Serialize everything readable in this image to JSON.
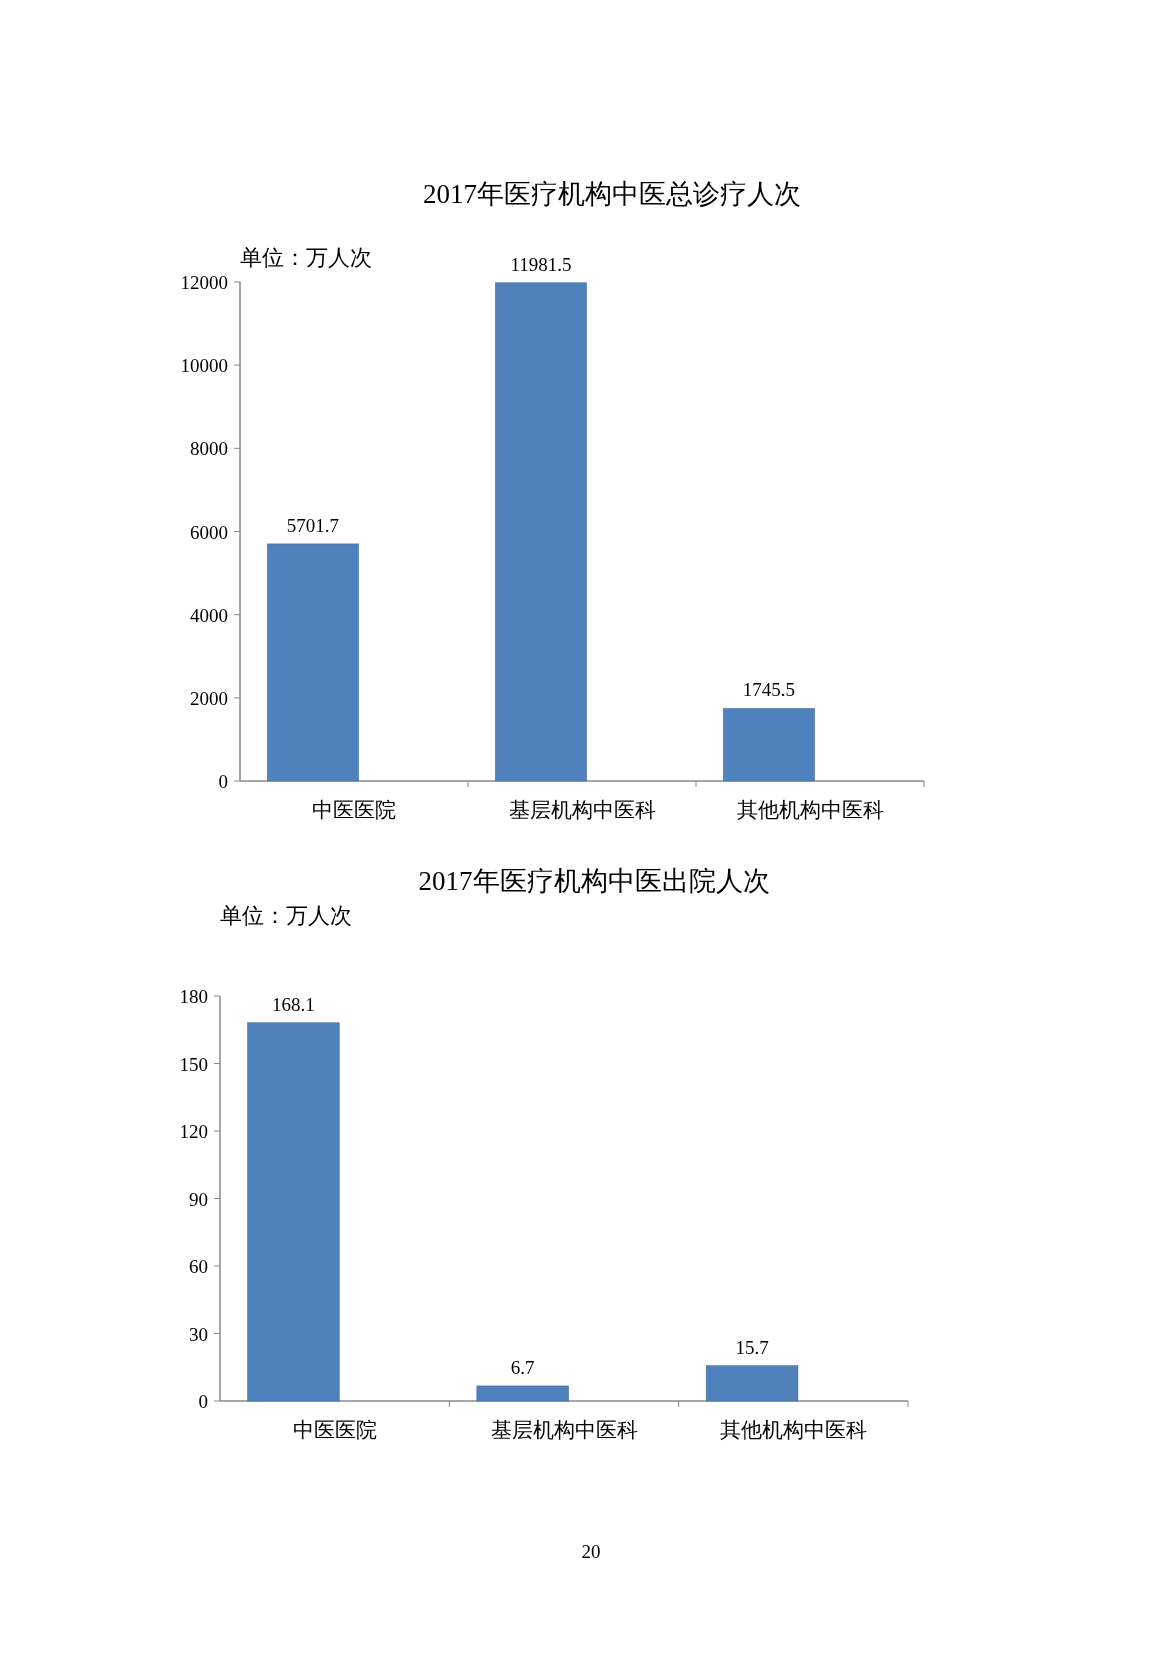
{
  "chart_data": [
    {
      "type": "bar",
      "title": "2017年医疗机构中医总诊疗人次",
      "ylabel": "单位：万人次",
      "categories": [
        "中医医院",
        "基层机构中医科",
        "其他机构中医科"
      ],
      "values": [
        5701.7,
        11981.5,
        1745.5
      ],
      "color": "#4f81bd",
      "ylim": [
        0,
        12000
      ],
      "yticks": [
        0,
        2000,
        4000,
        6000,
        8000,
        10000,
        12000
      ],
      "data_labels": true
    },
    {
      "type": "bar",
      "title": "2017年医疗机构中医出院人次",
      "ylabel": "单位：万人次",
      "categories": [
        "中医医院",
        "基层机构中医科",
        "其他机构中医科"
      ],
      "values": [
        168.1,
        6.7,
        15.7
      ],
      "color": "#4f81bd",
      "ylim": [
        0,
        180
      ],
      "yticks": [
        0,
        30,
        60,
        90,
        120,
        150,
        180
      ],
      "data_labels": true,
      "annotations": [
        "20"
      ]
    }
  ]
}
